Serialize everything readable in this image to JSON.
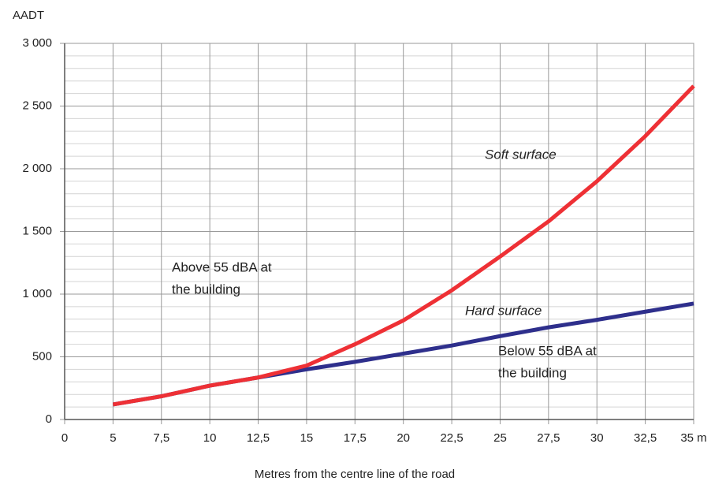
{
  "chart_data": {
    "type": "line",
    "y_axis_label": "AADT",
    "x_axis_label": "Metres from the centre line of the road",
    "categories": [
      "0",
      "5",
      "7,5",
      "10",
      "12,5",
      "15",
      "17,5",
      "20",
      "22,5",
      "25",
      "27,5",
      "30",
      "32,5",
      "35 m"
    ],
    "series": [
      {
        "name": "Hard surface",
        "color": "#2e2f8c",
        "values": [
          null,
          120,
          185,
          270,
          335,
          400,
          460,
          525,
          590,
          665,
          735,
          795,
          860,
          925
        ]
      },
      {
        "name": "Soft surface",
        "color": "#ee3035",
        "values": [
          null,
          120,
          185,
          270,
          335,
          430,
          600,
          790,
          1030,
          1300,
          1580,
          1900,
          2260,
          2660
        ]
      }
    ],
    "ylim": [
      0,
      3000
    ],
    "yticks": [
      {
        "value": 0,
        "label": "0"
      },
      {
        "value": 500,
        "label": "500"
      },
      {
        "value": 1000,
        "label": "1 000"
      },
      {
        "value": 1500,
        "label": "1 500"
      },
      {
        "value": 2000,
        "label": "2 000"
      },
      {
        "value": 2500,
        "label": "2 500"
      },
      {
        "value": 3000,
        "label": "3 000"
      }
    ],
    "grid": true,
    "annotations": [
      {
        "lines": [
          "Soft surface"
        ],
        "italic": true
      },
      {
        "lines": [
          "Hard surface"
        ],
        "italic": true
      },
      {
        "lines": [
          "Above 55 dBA at",
          "the building"
        ],
        "italic": false
      },
      {
        "lines": [
          "Below 55 dBA at",
          "the building"
        ],
        "italic": false
      }
    ]
  }
}
